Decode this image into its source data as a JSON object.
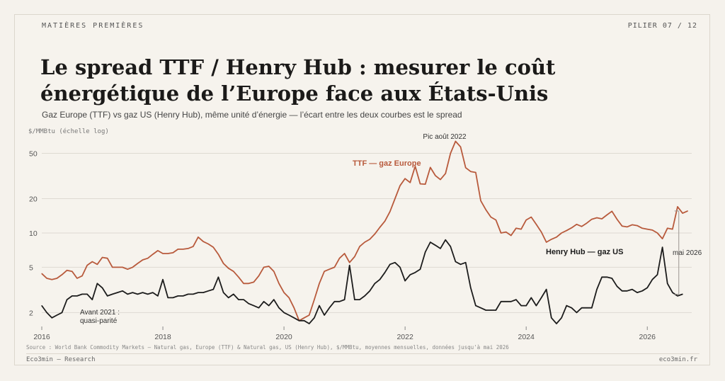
{
  "header": {
    "kicker": "MATIÈRES PREMIÈRES",
    "pillar": "PILIER 07 / 12",
    "title": "Le spread TTF / Henry Hub : mesurer le coût énergétique de l’Europe face aux États-Unis",
    "subtitle": "Gaz Europe (TTF) vs gaz US (Henry Hub), même unité d’énergie — l’écart entre les deux courbes est le spread"
  },
  "footer": {
    "source": "Source : World Bank Commodity Markets — Natural gas, Europe (TTF) & Natural gas, US (Henry Hub), $/MMBtu, moyennes mensuelles, données jusqu'à mai 2026",
    "brand": "Eco3min — Research",
    "site": "eco3min.fr"
  },
  "colors": {
    "ttf": "#b85a3c",
    "henry_hub": "#1c1c1c",
    "grid": "#dedad2",
    "annotation": "#9a9590",
    "background": "#f6f3ed"
  },
  "chart_data": {
    "type": "line",
    "ylabel": "$/MMBtu (échelle log)",
    "yscale": "log",
    "ylim": [
      1.6,
      70
    ],
    "yticks": [
      2,
      5,
      10,
      20,
      50
    ],
    "xlim": [
      2016.0,
      2026.5
    ],
    "xticks": [
      2016,
      2018,
      2020,
      2022,
      2024,
      2026
    ],
    "grid": true,
    "series": [
      {
        "name": "TTF — gaz Europe",
        "color": "#b85a3c",
        "start": "2016-01",
        "values": [
          4.4,
          4.0,
          3.9,
          4.0,
          4.3,
          4.7,
          4.6,
          4.0,
          4.2,
          5.2,
          5.6,
          5.3,
          6.1,
          6.0,
          5.0,
          5.0,
          5.0,
          4.8,
          5.0,
          5.4,
          5.8,
          6.0,
          6.5,
          7.0,
          6.6,
          6.6,
          6.7,
          7.2,
          7.2,
          7.3,
          7.6,
          9.2,
          8.4,
          8.0,
          7.5,
          6.5,
          5.4,
          4.9,
          4.6,
          4.1,
          3.6,
          3.6,
          3.7,
          4.2,
          5.0,
          5.1,
          4.6,
          3.6,
          3.0,
          2.7,
          2.2,
          1.7,
          1.8,
          1.9,
          2.6,
          3.6,
          4.6,
          4.8,
          5.0,
          6.0,
          6.6,
          5.5,
          6.2,
          7.6,
          8.3,
          8.8,
          9.8,
          11.2,
          12.7,
          15.4,
          20.0,
          26.0,
          30.0,
          27.7,
          38.5,
          27.0,
          26.8,
          37.6,
          31.9,
          29.4,
          33.2,
          50.0,
          63.8,
          57.0,
          37.4,
          34.6,
          34.0,
          19.2,
          16.0,
          13.8,
          13.0,
          10.0,
          10.2,
          9.5,
          11.0,
          10.8,
          13.0,
          13.8,
          11.9,
          10.2,
          8.3,
          8.8,
          9.2,
          10.0,
          10.5,
          11.1,
          11.9,
          11.4,
          12.2,
          13.2,
          13.6,
          13.3,
          14.4,
          15.5,
          13.2,
          11.5,
          11.3,
          11.8,
          11.6,
          11.0,
          10.8,
          10.6,
          10.0,
          8.9,
          11.0,
          10.8,
          17.0,
          14.9,
          15.6
        ]
      },
      {
        "name": "Henry Hub — gaz US",
        "color": "#1c1c1c",
        "start": "2016-01",
        "values": [
          2.3,
          2.0,
          1.8,
          1.9,
          2.0,
          2.6,
          2.8,
          2.8,
          2.9,
          2.9,
          2.6,
          3.6,
          3.3,
          2.8,
          2.9,
          3.0,
          3.1,
          2.9,
          3.0,
          2.9,
          3.0,
          2.9,
          3.0,
          2.8,
          3.9,
          2.7,
          2.7,
          2.8,
          2.8,
          2.9,
          2.9,
          3.0,
          3.0,
          3.1,
          3.2,
          4.1,
          3.0,
          2.7,
          2.9,
          2.6,
          2.6,
          2.4,
          2.3,
          2.2,
          2.5,
          2.3,
          2.6,
          2.2,
          2.0,
          1.9,
          1.8,
          1.7,
          1.7,
          1.6,
          1.8,
          2.3,
          1.9,
          2.2,
          2.5,
          2.5,
          2.6,
          5.2,
          2.6,
          2.6,
          2.8,
          3.1,
          3.6,
          3.9,
          4.5,
          5.3,
          5.5,
          5.0,
          3.8,
          4.3,
          4.5,
          4.8,
          6.8,
          8.3,
          7.8,
          7.3,
          8.7,
          7.6,
          5.6,
          5.3,
          5.5,
          3.3,
          2.3,
          2.2,
          2.1,
          2.1,
          2.1,
          2.5,
          2.5,
          2.5,
          2.6,
          2.3,
          2.3,
          2.7,
          2.3,
          2.7,
          3.2,
          1.8,
          1.6,
          1.8,
          2.3,
          2.2,
          2.0,
          2.2,
          2.2,
          2.2,
          3.2,
          4.1,
          4.1,
          4.0,
          3.4,
          3.1,
          3.1,
          3.2,
          3.0,
          3.1,
          3.3,
          3.9,
          4.3,
          7.5,
          3.6,
          3.0,
          2.8,
          2.9
        ]
      }
    ],
    "annotations": [
      {
        "text": "Pic août 2022"
      },
      {
        "text": "Avant 2021 :"
      },
      {
        "text": "quasi-parité"
      },
      {
        "text": "mai 2026"
      }
    ]
  }
}
